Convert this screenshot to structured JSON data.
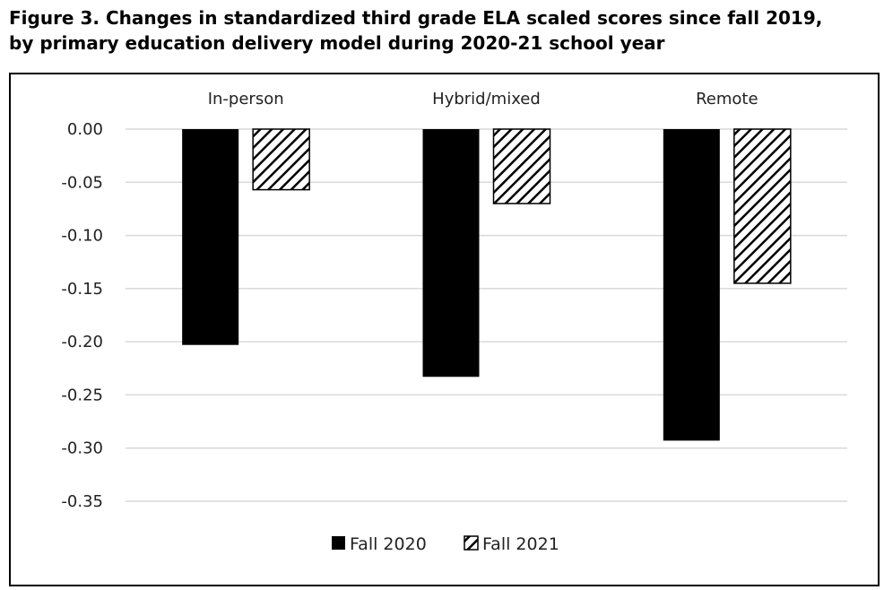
{
  "figure": {
    "title_line1": "Figure 3. Changes in standardized third grade ELA scaled scores since fall 2019,",
    "title_line2": "by primary education delivery model during 2020-21 school year"
  },
  "chart_data": {
    "type": "bar",
    "categories": [
      "In-person",
      "Hybrid/mixed",
      "Remote"
    ],
    "series": [
      {
        "name": "Fall 2020",
        "values": [
          -0.203,
          -0.233,
          -0.293
        ],
        "fill": "solid",
        "color": "#000000"
      },
      {
        "name": "Fall 2021",
        "values": [
          -0.057,
          -0.07,
          -0.145
        ],
        "fill": "diagonal-hatch",
        "color": "#000000"
      }
    ],
    "ylim": [
      -0.35,
      0.0
    ],
    "yticks": [
      "0.00",
      "-0.05",
      "-0.10",
      "-0.15",
      "-0.20",
      "-0.25",
      "-0.30",
      "-0.35"
    ],
    "ytick_values": [
      0.0,
      -0.05,
      -0.1,
      -0.15,
      -0.2,
      -0.25,
      -0.3,
      -0.35
    ],
    "category_labels_position": "top",
    "grid": true,
    "gridline_color": "#d9d9d9",
    "legend_position": "bottom-center"
  }
}
